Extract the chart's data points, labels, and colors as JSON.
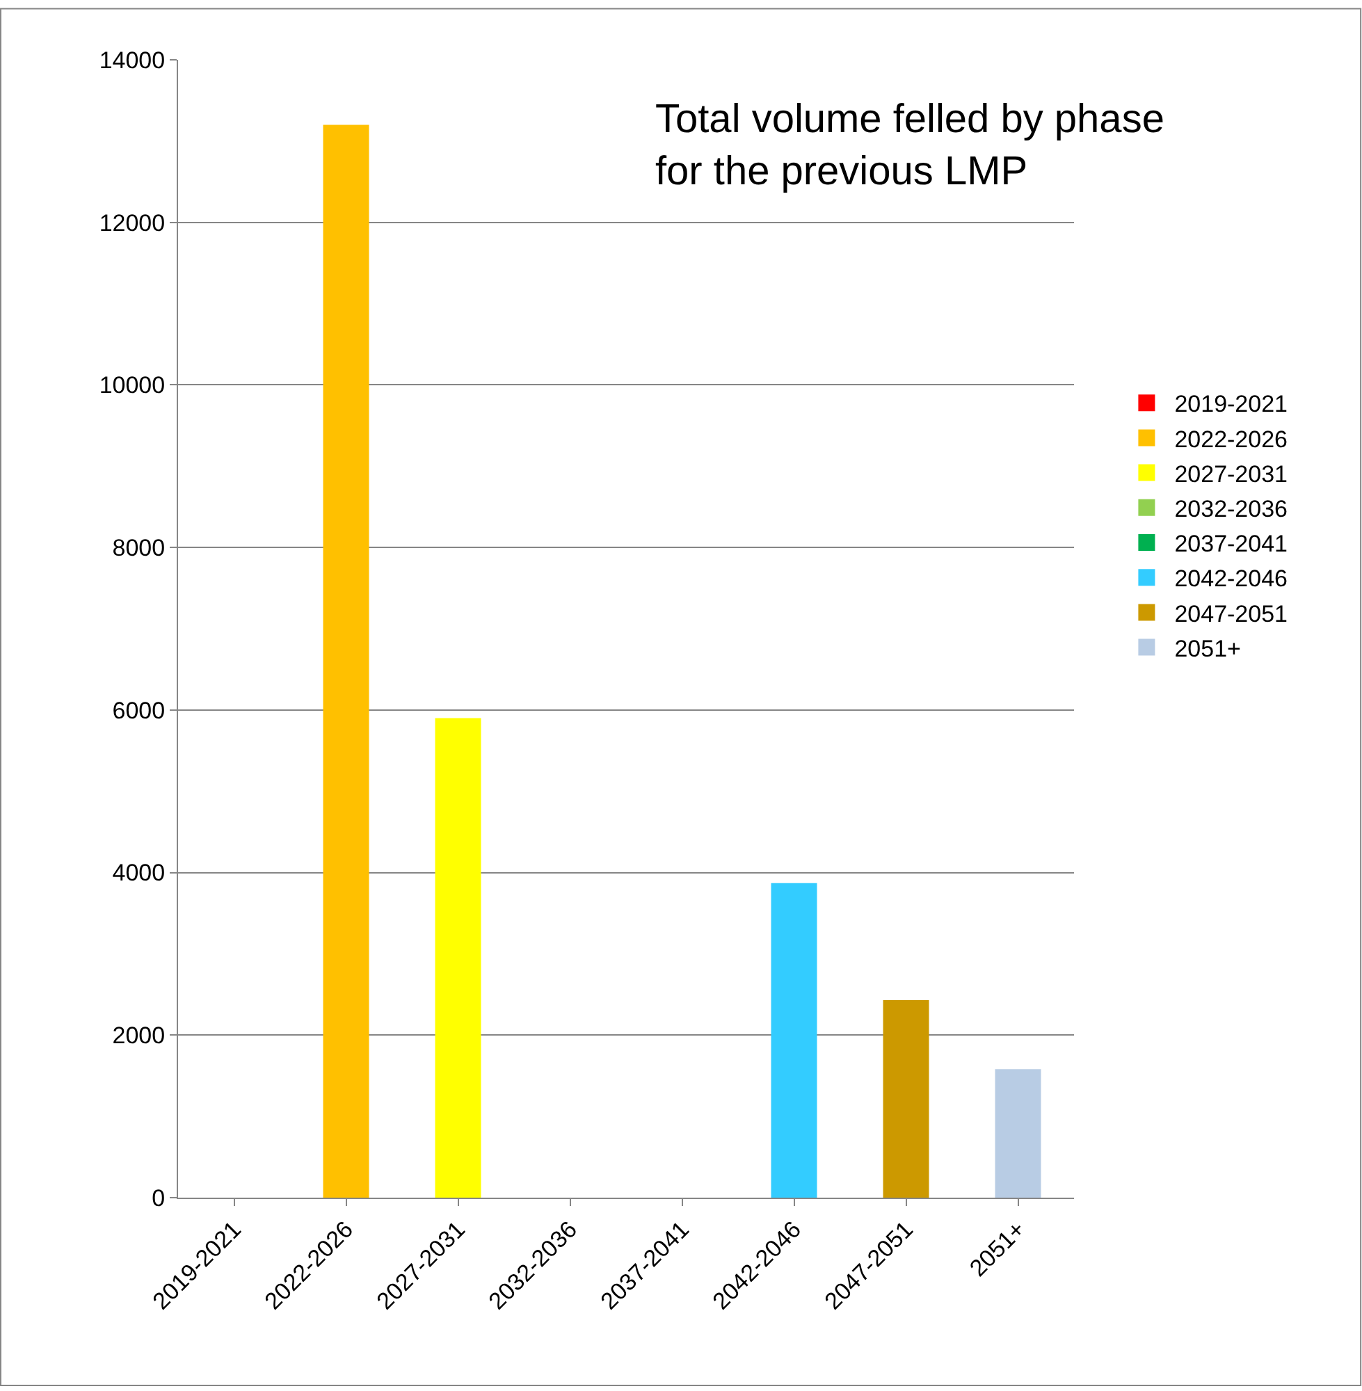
{
  "chart_data": {
    "type": "bar",
    "title": "Total volume felled by phase\nfor the previous LMP",
    "categories": [
      "2019-2021",
      "2022-2026",
      "2027-2031",
      "2032-2036",
      "2037-2041",
      "2042-2046",
      "2047-2051",
      "2051+"
    ],
    "series": [
      {
        "name": "2019-2021",
        "color": "#ff0000",
        "values": [
          0,
          null,
          null,
          null,
          null,
          null,
          null,
          null
        ]
      },
      {
        "name": "2022-2026",
        "color": "#ffc000",
        "values": [
          null,
          13200,
          null,
          null,
          null,
          null,
          null,
          null
        ]
      },
      {
        "name": "2027-2031",
        "color": "#ffff00",
        "values": [
          null,
          null,
          5900,
          null,
          null,
          null,
          null,
          null
        ]
      },
      {
        "name": "2032-2036",
        "color": "#92d050",
        "values": [
          null,
          null,
          null,
          0,
          null,
          null,
          null,
          null
        ]
      },
      {
        "name": "2037-2041",
        "color": "#00b050",
        "values": [
          null,
          null,
          null,
          null,
          0,
          null,
          null,
          null
        ]
      },
      {
        "name": "2042-2046",
        "color": "#33ccff",
        "values": [
          null,
          null,
          null,
          null,
          null,
          3870,
          null,
          null
        ]
      },
      {
        "name": "2047-2051",
        "color": "#cc9900",
        "values": [
          null,
          null,
          null,
          null,
          null,
          null,
          2430,
          null
        ]
      },
      {
        "name": "2051+",
        "color": "#b8cce4",
        "values": [
          null,
          null,
          null,
          null,
          null,
          null,
          null,
          1580
        ]
      }
    ],
    "ylim": [
      0,
      14000
    ],
    "yticks": [
      0,
      2000,
      4000,
      6000,
      8000,
      10000,
      12000,
      14000
    ],
    "grid": "y",
    "legend": "right"
  }
}
